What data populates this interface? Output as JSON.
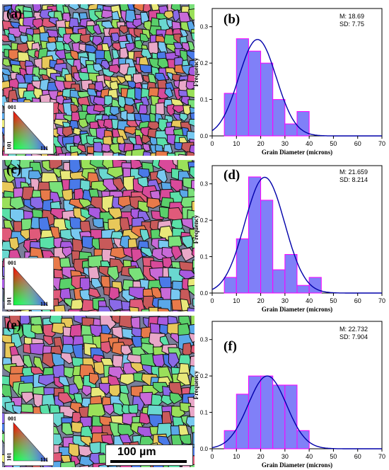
{
  "scale_bar": {
    "label": "100 µm"
  },
  "ipf_legend": {
    "top": "001",
    "left": "101",
    "right": "111"
  },
  "maps": [
    {
      "letter": "(a)"
    },
    {
      "letter": "(c)"
    },
    {
      "letter": "(e)"
    }
  ],
  "chart_data": [
    {
      "type": "bar",
      "panel": "(b)",
      "stats": [
        "M: 18.69",
        "SD: 7.75"
      ],
      "xlabel": "Grain Diameter (microns)",
      "ylabel": "Frequency",
      "xlim": [
        0,
        70
      ],
      "ylim": [
        0,
        0.35
      ],
      "xticks": [
        0,
        10,
        20,
        30,
        40,
        50,
        60,
        70
      ],
      "yticks": [
        0.0,
        0.1,
        0.2,
        0.3
      ],
      "bin_edges": [
        5,
        10,
        15,
        20,
        25,
        30,
        35,
        40
      ],
      "values": [
        0.117,
        0.267,
        0.233,
        0.2,
        0.1,
        0.033,
        0.067
      ],
      "fit": {
        "type": "normal",
        "mean": 18.69,
        "sd": 7.75,
        "peak": 0.265
      },
      "colors": {
        "bar_fill": "#8080f8",
        "bar_edge": "#ff00ff",
        "curve": "#0000aa"
      }
    },
    {
      "type": "bar",
      "panel": "(d)",
      "stats": [
        "M: 21.659",
        "SD: 8.214"
      ],
      "xlabel": "Grain Diameter (microns)",
      "ylabel": "Frequency",
      "xlim": [
        0,
        70
      ],
      "ylim": [
        0,
        0.35
      ],
      "xticks": [
        0,
        10,
        20,
        30,
        40,
        50,
        60,
        70
      ],
      "yticks": [
        0.0,
        0.1,
        0.2,
        0.3
      ],
      "bin_edges": [
        5,
        10,
        15,
        20,
        25,
        30,
        35,
        40,
        45
      ],
      "values": [
        0.043,
        0.149,
        0.319,
        0.255,
        0.064,
        0.106,
        0.021,
        0.043
      ],
      "fit": {
        "type": "normal",
        "mean": 21.659,
        "sd": 8.214,
        "peak": 0.318
      },
      "colors": {
        "bar_fill": "#8080f8",
        "bar_edge": "#ff00ff",
        "curve": "#0000aa"
      }
    },
    {
      "type": "bar",
      "panel": "(f)",
      "stats": [
        "M: 22.732",
        "SD: 7.904"
      ],
      "xlabel": "Grain Diameter (microns)",
      "ylabel": "Frequency",
      "xlim": [
        0,
        70
      ],
      "ylim": [
        0,
        0.35
      ],
      "xticks": [
        0,
        10,
        20,
        30,
        40,
        50,
        60,
        70
      ],
      "yticks": [
        0.0,
        0.1,
        0.2,
        0.3
      ],
      "bin_edges": [
        5,
        10,
        15,
        20,
        25,
        30,
        35,
        40
      ],
      "values": [
        0.05,
        0.15,
        0.2,
        0.2,
        0.175,
        0.175,
        0.05
      ],
      "fit": {
        "type": "normal",
        "mean": 22.732,
        "sd": 7.904,
        "peak": 0.2
      },
      "colors": {
        "bar_fill": "#8080f8",
        "bar_edge": "#ff00ff",
        "curve": "#0000aa"
      }
    }
  ]
}
